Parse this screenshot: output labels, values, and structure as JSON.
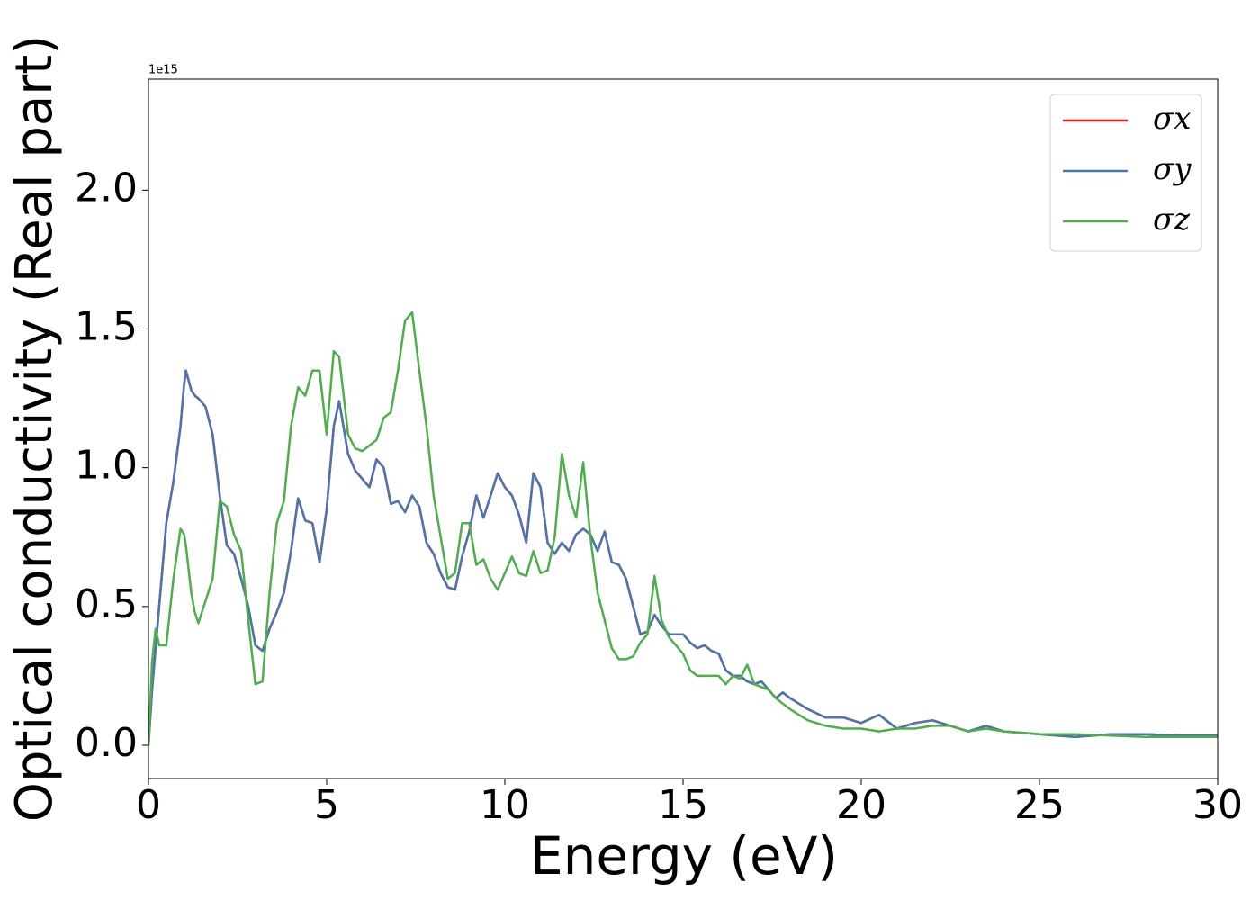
{
  "chart_data": {
    "type": "line",
    "xlabel": "Energy (eV)",
    "ylabel": "Optical conductivity (Real part)",
    "offset_text": "1e15",
    "x": [
      0,
      0.1,
      0.2,
      0.3,
      0.5,
      0.7,
      0.9,
      1.0,
      1.05,
      1.2,
      1.3,
      1.4,
      1.6,
      1.8,
      2.0,
      2.2,
      2.4,
      2.6,
      2.8,
      3.0,
      3.2,
      3.4,
      3.6,
      3.8,
      4.0,
      4.2,
      4.4,
      4.6,
      4.8,
      5.0,
      5.2,
      5.35,
      5.6,
      5.8,
      6.0,
      6.2,
      6.4,
      6.6,
      6.8,
      7.0,
      7.2,
      7.4,
      7.6,
      7.8,
      8.0,
      8.2,
      8.4,
      8.6,
      8.8,
      9.0,
      9.2,
      9.4,
      9.6,
      9.8,
      10.0,
      10.2,
      10.4,
      10.6,
      10.8,
      11.0,
      11.2,
      11.4,
      11.6,
      11.8,
      12.0,
      12.2,
      12.4,
      12.6,
      12.8,
      13.0,
      13.2,
      13.4,
      13.6,
      13.8,
      14.0,
      14.2,
      14.4,
      14.6,
      14.8,
      15.0,
      15.2,
      15.4,
      15.6,
      15.8,
      16.0,
      16.2,
      16.4,
      16.6,
      16.8,
      17.0,
      17.2,
      17.4,
      17.6,
      17.8,
      18.0,
      18.5,
      19.0,
      19.5,
      20.0,
      20.5,
      21.0,
      21.5,
      22.0,
      22.5,
      23.0,
      23.5,
      24.0,
      25.0,
      26.0,
      27.0,
      28.0,
      29.0,
      30.0
    ],
    "series": [
      {
        "name": "σx",
        "color": "#e41a1c",
        "values": [
          0,
          0.2,
          0.35,
          0.5,
          0.8,
          0.95,
          1.15,
          1.3,
          1.35,
          1.28,
          1.26,
          1.25,
          1.22,
          1.12,
          0.9,
          0.72,
          0.69,
          0.6,
          0.5,
          0.36,
          0.34,
          0.42,
          0.48,
          0.55,
          0.7,
          0.89,
          0.81,
          0.8,
          0.66,
          0.85,
          1.15,
          1.24,
          1.05,
          0.99,
          0.96,
          0.93,
          1.03,
          1.0,
          0.87,
          0.88,
          0.84,
          0.9,
          0.86,
          0.73,
          0.69,
          0.62,
          0.57,
          0.56,
          0.68,
          0.77,
          0.9,
          0.82,
          0.9,
          0.98,
          0.93,
          0.9,
          0.83,
          0.73,
          0.98,
          0.93,
          0.73,
          0.69,
          0.73,
          0.7,
          0.76,
          0.78,
          0.76,
          0.7,
          0.77,
          0.66,
          0.65,
          0.6,
          0.5,
          0.4,
          0.41,
          0.47,
          0.43,
          0.4,
          0.4,
          0.4,
          0.37,
          0.35,
          0.36,
          0.34,
          0.33,
          0.27,
          0.25,
          0.25,
          0.23,
          0.22,
          0.23,
          0.2,
          0.17,
          0.19,
          0.17,
          0.13,
          0.1,
          0.1,
          0.08,
          0.11,
          0.06,
          0.08,
          0.09,
          0.07,
          0.05,
          0.07,
          0.05,
          0.04,
          0.03,
          0.04,
          0.04,
          0.035,
          0.035
        ]
      },
      {
        "name": "σy",
        "color": "#4a75b0",
        "values": [
          0,
          0.2,
          0.35,
          0.5,
          0.8,
          0.95,
          1.15,
          1.3,
          1.35,
          1.28,
          1.26,
          1.25,
          1.22,
          1.12,
          0.9,
          0.72,
          0.69,
          0.6,
          0.5,
          0.36,
          0.34,
          0.42,
          0.48,
          0.55,
          0.7,
          0.89,
          0.81,
          0.8,
          0.66,
          0.85,
          1.15,
          1.24,
          1.05,
          0.99,
          0.96,
          0.93,
          1.03,
          1.0,
          0.87,
          0.88,
          0.84,
          0.9,
          0.86,
          0.73,
          0.69,
          0.62,
          0.57,
          0.56,
          0.68,
          0.77,
          0.9,
          0.82,
          0.9,
          0.98,
          0.93,
          0.9,
          0.83,
          0.73,
          0.98,
          0.93,
          0.73,
          0.69,
          0.73,
          0.7,
          0.76,
          0.78,
          0.76,
          0.7,
          0.77,
          0.66,
          0.65,
          0.6,
          0.5,
          0.4,
          0.41,
          0.47,
          0.43,
          0.4,
          0.4,
          0.4,
          0.37,
          0.35,
          0.36,
          0.34,
          0.33,
          0.27,
          0.25,
          0.25,
          0.23,
          0.22,
          0.23,
          0.2,
          0.17,
          0.19,
          0.17,
          0.13,
          0.1,
          0.1,
          0.08,
          0.11,
          0.06,
          0.08,
          0.09,
          0.07,
          0.05,
          0.07,
          0.05,
          0.04,
          0.03,
          0.04,
          0.04,
          0.035,
          0.035
        ]
      },
      {
        "name": "σz",
        "color": "#4daf4a",
        "values": [
          0,
          0.3,
          0.42,
          0.36,
          0.36,
          0.6,
          0.78,
          0.76,
          0.72,
          0.55,
          0.48,
          0.44,
          0.52,
          0.6,
          0.88,
          0.86,
          0.76,
          0.7,
          0.45,
          0.22,
          0.23,
          0.55,
          0.8,
          0.88,
          1.15,
          1.29,
          1.26,
          1.35,
          1.35,
          1.12,
          1.42,
          1.4,
          1.12,
          1.07,
          1.06,
          1.08,
          1.1,
          1.18,
          1.2,
          1.35,
          1.53,
          1.56,
          1.35,
          1.15,
          0.9,
          0.75,
          0.6,
          0.62,
          0.8,
          0.8,
          0.65,
          0.67,
          0.6,
          0.56,
          0.62,
          0.68,
          0.62,
          0.61,
          0.7,
          0.62,
          0.63,
          0.75,
          1.05,
          0.9,
          0.82,
          1.02,
          0.75,
          0.55,
          0.45,
          0.35,
          0.31,
          0.31,
          0.32,
          0.37,
          0.4,
          0.61,
          0.45,
          0.39,
          0.36,
          0.33,
          0.27,
          0.25,
          0.25,
          0.25,
          0.25,
          0.22,
          0.25,
          0.24,
          0.29,
          0.22,
          0.21,
          0.2,
          0.17,
          0.15,
          0.13,
          0.09,
          0.07,
          0.06,
          0.06,
          0.05,
          0.06,
          0.06,
          0.07,
          0.07,
          0.05,
          0.06,
          0.05,
          0.04,
          0.04,
          0.035,
          0.03,
          0.03,
          0.03
        ]
      }
    ],
    "xlim": [
      0,
      30
    ],
    "xticks": [
      0,
      5,
      10,
      15,
      20,
      25,
      30
    ],
    "ylim": [
      -0.12,
      2.4
    ],
    "yticks": [
      {
        "value": 0,
        "label": "0.0"
      },
      {
        "value": 0.5,
        "label": "0.5"
      },
      {
        "value": 1,
        "label": "1.0"
      },
      {
        "value": 1.5,
        "label": "1.5"
      },
      {
        "value": 2,
        "label": "2.0"
      }
    ],
    "legend": "upper right",
    "grid": false
  }
}
